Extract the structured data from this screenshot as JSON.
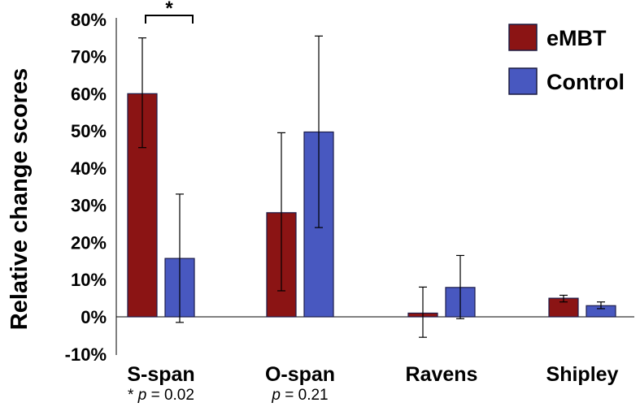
{
  "chart_data": {
    "type": "bar",
    "ylabel": "Relative change scores",
    "ylim": [
      -10,
      80
    ],
    "yticks": [
      -10,
      0,
      10,
      20,
      30,
      40,
      50,
      60,
      70,
      80
    ],
    "ytick_labels": [
      "-10%",
      "0%",
      "10%",
      "20%",
      "30%",
      "40%",
      "50%",
      "60%",
      "70%",
      "80%"
    ],
    "categories": [
      "S-span",
      "O-span",
      "Ravens",
      "Shipley"
    ],
    "series": [
      {
        "name": "eMBT",
        "color": "#8B1414",
        "values": [
          60,
          28,
          1,
          5
        ],
        "error_low": [
          45.5,
          7,
          -5.5,
          4
        ],
        "error_high": [
          75,
          49.5,
          8,
          5.8
        ]
      },
      {
        "name": "Control",
        "color": "#4858C0",
        "values": [
          15.7,
          49.7,
          7.9,
          3
        ],
        "error_low": [
          -1.5,
          24,
          -0.5,
          2.2
        ],
        "error_high": [
          33,
          75.5,
          16.5,
          4
        ]
      }
    ],
    "grid": false,
    "legend_position": "top-right",
    "annotations": {
      "significance_star": "*",
      "p_values": [
        {
          "prefix": "* ",
          "p": "p",
          "suffix": " = 0.02"
        },
        {
          "prefix": "",
          "p": "p",
          "suffix": " = 0.21"
        }
      ]
    }
  }
}
